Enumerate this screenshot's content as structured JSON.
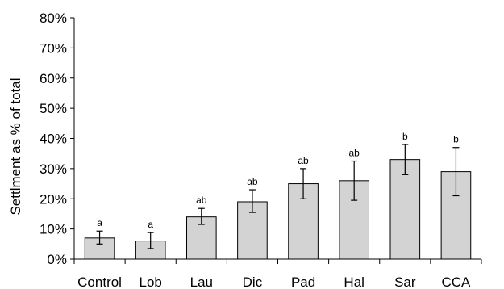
{
  "chart_data": {
    "type": "bar",
    "title": "",
    "xlabel": "",
    "ylabel": "Settlment as % of total",
    "ylim": [
      0,
      80
    ],
    "yticks": [
      "0%",
      "10%",
      "20%",
      "30%",
      "40%",
      "50%",
      "60%",
      "70%",
      "80%"
    ],
    "categories": [
      "Control",
      "Lob",
      "Lau",
      "Dic",
      "Pad",
      "Hal",
      "Sar",
      "CCA"
    ],
    "values": [
      7,
      6,
      14,
      19,
      25,
      26,
      33,
      29
    ],
    "error_low": [
      5,
      3.5,
      11.5,
      15.5,
      20,
      19.5,
      28,
      21
    ],
    "error_high": [
      9.3,
      8.8,
      16.8,
      23,
      30,
      32.5,
      38,
      37
    ],
    "significance": [
      "a",
      "a",
      "ab",
      "ab",
      "ab",
      "ab",
      "b",
      "b"
    ],
    "bar_color": "#d3d3d3",
    "grid": false,
    "legend": "none"
  }
}
